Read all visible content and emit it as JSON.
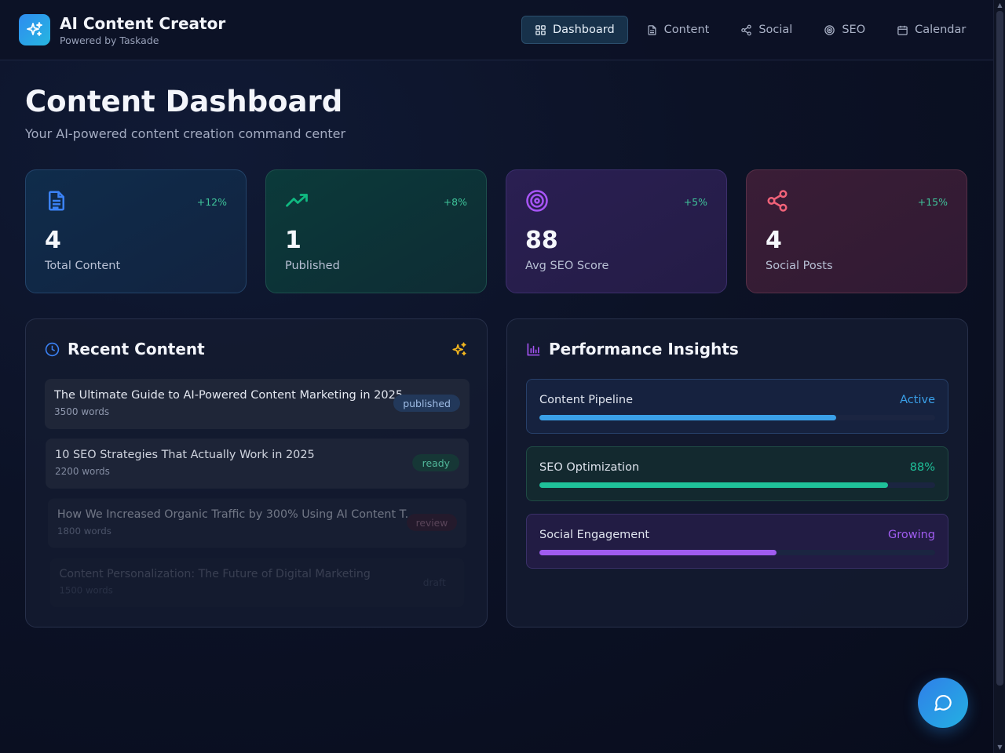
{
  "brand": {
    "title": "AI Content Creator",
    "subtitle": "Powered by Taskade"
  },
  "nav": [
    {
      "label": "Dashboard",
      "icon": "dashboard-icon",
      "active": true
    },
    {
      "label": "Content",
      "icon": "document-icon",
      "active": false
    },
    {
      "label": "Social",
      "icon": "share-icon",
      "active": false
    },
    {
      "label": "SEO",
      "icon": "target-icon",
      "active": false
    },
    {
      "label": "Calendar",
      "icon": "calendar-icon",
      "active": false
    }
  ],
  "page": {
    "title": "Content Dashboard",
    "subtitle": "Your AI-powered content creation command center"
  },
  "stats": [
    {
      "value": "4",
      "label": "Total Content",
      "delta": "+12%",
      "icon": "document-icon",
      "color": "#3b82f6"
    },
    {
      "value": "1",
      "label": "Published",
      "delta": "+8%",
      "icon": "trending-up-icon",
      "color": "#10b981"
    },
    {
      "value": "88",
      "label": "Avg SEO Score",
      "delta": "+5%",
      "icon": "target-icon",
      "color": "#a855f7"
    },
    {
      "value": "4",
      "label": "Social Posts",
      "delta": "+15%",
      "icon": "share-icon",
      "color": "#f06279"
    }
  ],
  "recent": {
    "title": "Recent Content",
    "items": [
      {
        "title": "The Ultimate Guide to AI-Powered Content Marketing in 2025",
        "words": "3500 words",
        "status": "published"
      },
      {
        "title": "10 SEO Strategies That Actually Work in 2025",
        "words": "2200 words",
        "status": "ready"
      },
      {
        "title": "How We Increased Organic Traffic by 300% Using AI Content T...",
        "words": "1800 words",
        "status": "review"
      },
      {
        "title": "Content Personalization: The Future of Digital Marketing",
        "words": "1500 words",
        "status": "draft"
      }
    ]
  },
  "insights": {
    "title": "Performance Insights",
    "items": [
      {
        "label": "Content Pipeline",
        "value": "Active",
        "progress": 0.75,
        "color": "#3aa0e8"
      },
      {
        "label": "SEO Optimization",
        "value": "88%",
        "progress": 0.88,
        "color": "#1fc29a"
      },
      {
        "label": "Social Engagement",
        "value": "Growing",
        "progress": 0.6,
        "color": "#a05cf0"
      }
    ]
  },
  "colors": {
    "accent": "#2f8cf0",
    "background": "#0b1022"
  }
}
